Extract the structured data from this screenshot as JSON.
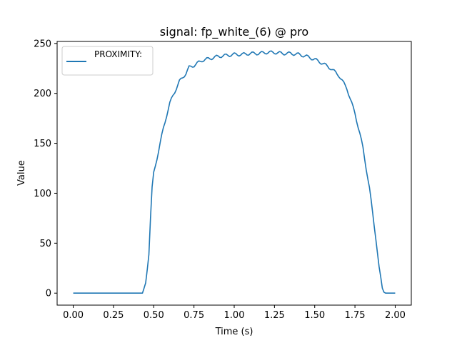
{
  "chart_data": {
    "type": "line",
    "title": "signal: fp_white_(6) @ pro",
    "xlabel": "Time (s)",
    "ylabel": "Value",
    "xlim": [
      -0.1,
      2.1
    ],
    "ylim": [
      -12,
      252
    ],
    "xticks": [
      "0.00",
      "0.25",
      "0.50",
      "0.75",
      "1.00",
      "1.25",
      "1.50",
      "1.75",
      "2.00"
    ],
    "xtick_values": [
      0,
      0.25,
      0.5,
      0.75,
      1.0,
      1.25,
      1.5,
      1.75,
      2.0
    ],
    "yticks": [
      "0",
      "50",
      "100",
      "150",
      "200",
      "250"
    ],
    "ytick_values": [
      0,
      50,
      100,
      150,
      200,
      250
    ],
    "grid": false,
    "legend_position": "upper left",
    "colors": {
      "series": "#1f77b4"
    },
    "series": [
      {
        "name": "PROXIMITY:",
        "x": [
          0.0,
          0.1,
          0.2,
          0.3,
          0.4,
          0.43,
          0.45,
          0.47,
          0.48,
          0.49,
          0.5,
          0.52,
          0.54,
          0.56,
          0.58,
          0.6,
          0.62,
          0.64,
          0.66,
          0.68,
          0.7,
          0.72,
          0.75,
          0.78,
          0.8,
          0.85,
          0.9,
          0.95,
          1.0,
          1.05,
          1.1,
          1.15,
          1.2,
          1.25,
          1.3,
          1.35,
          1.4,
          1.45,
          1.5,
          1.55,
          1.6,
          1.65,
          1.7,
          1.72,
          1.75,
          1.78,
          1.8,
          1.82,
          1.84,
          1.86,
          1.88,
          1.89,
          1.9,
          1.91,
          1.92,
          1.93,
          1.94,
          1.95,
          2.0
        ],
        "y": [
          0,
          0,
          0,
          0,
          0,
          0,
          10,
          40,
          75,
          105,
          120,
          135,
          150,
          165,
          178,
          190,
          198,
          205,
          212,
          216,
          220,
          226,
          228,
          231,
          233,
          235,
          237,
          238,
          239,
          239,
          240,
          240,
          241,
          241,
          240,
          240,
          239,
          237,
          234,
          230,
          225,
          218,
          205,
          195,
          180,
          160,
          145,
          125,
          105,
          80,
          55,
          40,
          25,
          15,
          5,
          1,
          0,
          0,
          0
        ]
      }
    ]
  }
}
